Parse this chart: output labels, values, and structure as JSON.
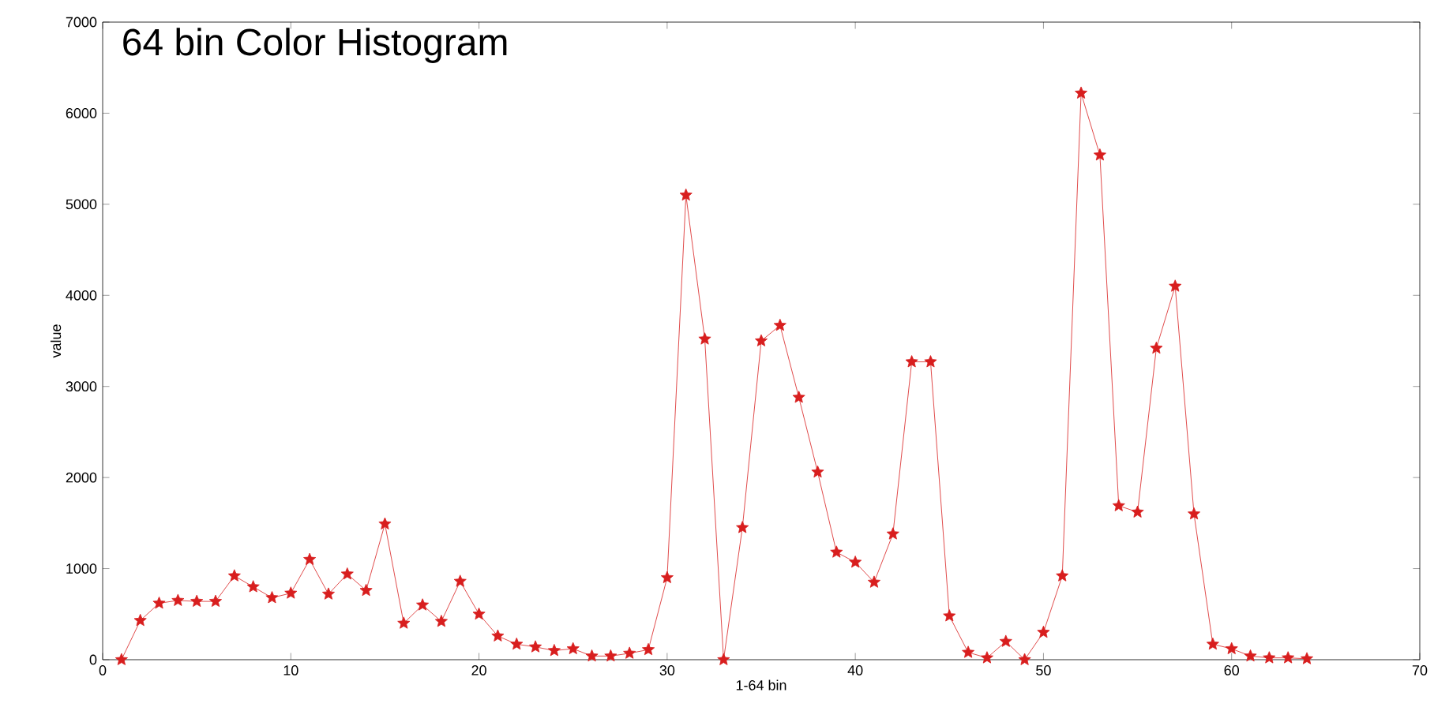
{
  "chart_data": {
    "type": "line",
    "title": "64 bin Color Histogram",
    "xlabel": "1-64 bin",
    "ylabel": "value",
    "x": [
      1,
      2,
      3,
      4,
      5,
      6,
      7,
      8,
      9,
      10,
      11,
      12,
      13,
      14,
      15,
      16,
      17,
      18,
      19,
      20,
      21,
      22,
      23,
      24,
      25,
      26,
      27,
      28,
      29,
      30,
      31,
      32,
      33,
      34,
      35,
      36,
      37,
      38,
      39,
      40,
      41,
      42,
      43,
      44,
      45,
      46,
      47,
      48,
      49,
      50,
      51,
      52,
      53,
      54,
      55,
      56,
      57,
      58,
      59,
      60,
      61,
      62,
      63,
      64
    ],
    "series": [
      {
        "color": "#d81e1e",
        "values": [
          0,
          430,
          620,
          650,
          640,
          640,
          920,
          800,
          680,
          730,
          1100,
          720,
          940,
          760,
          1490,
          400,
          600,
          420,
          860,
          500,
          260,
          170,
          140,
          100,
          120,
          40,
          40,
          70,
          110,
          900,
          5100,
          3520,
          0,
          1450,
          3500,
          3670,
          2880,
          2060,
          1180,
          1070,
          850,
          1380,
          3270,
          3270,
          480,
          80,
          20,
          200,
          0,
          300,
          920,
          6220,
          5540,
          1690,
          1620,
          3420,
          4100,
          1600,
          170,
          120,
          40,
          20,
          20,
          10
        ]
      }
    ],
    "xlim": [
      0,
      70
    ],
    "ylim": [
      0,
      7000
    ],
    "xticks": [
      0,
      10,
      20,
      30,
      40,
      50,
      60,
      70
    ],
    "yticks": [
      0,
      1000,
      2000,
      3000,
      4000,
      5000,
      6000,
      7000
    ],
    "marker": "star",
    "line_style": "solid"
  }
}
